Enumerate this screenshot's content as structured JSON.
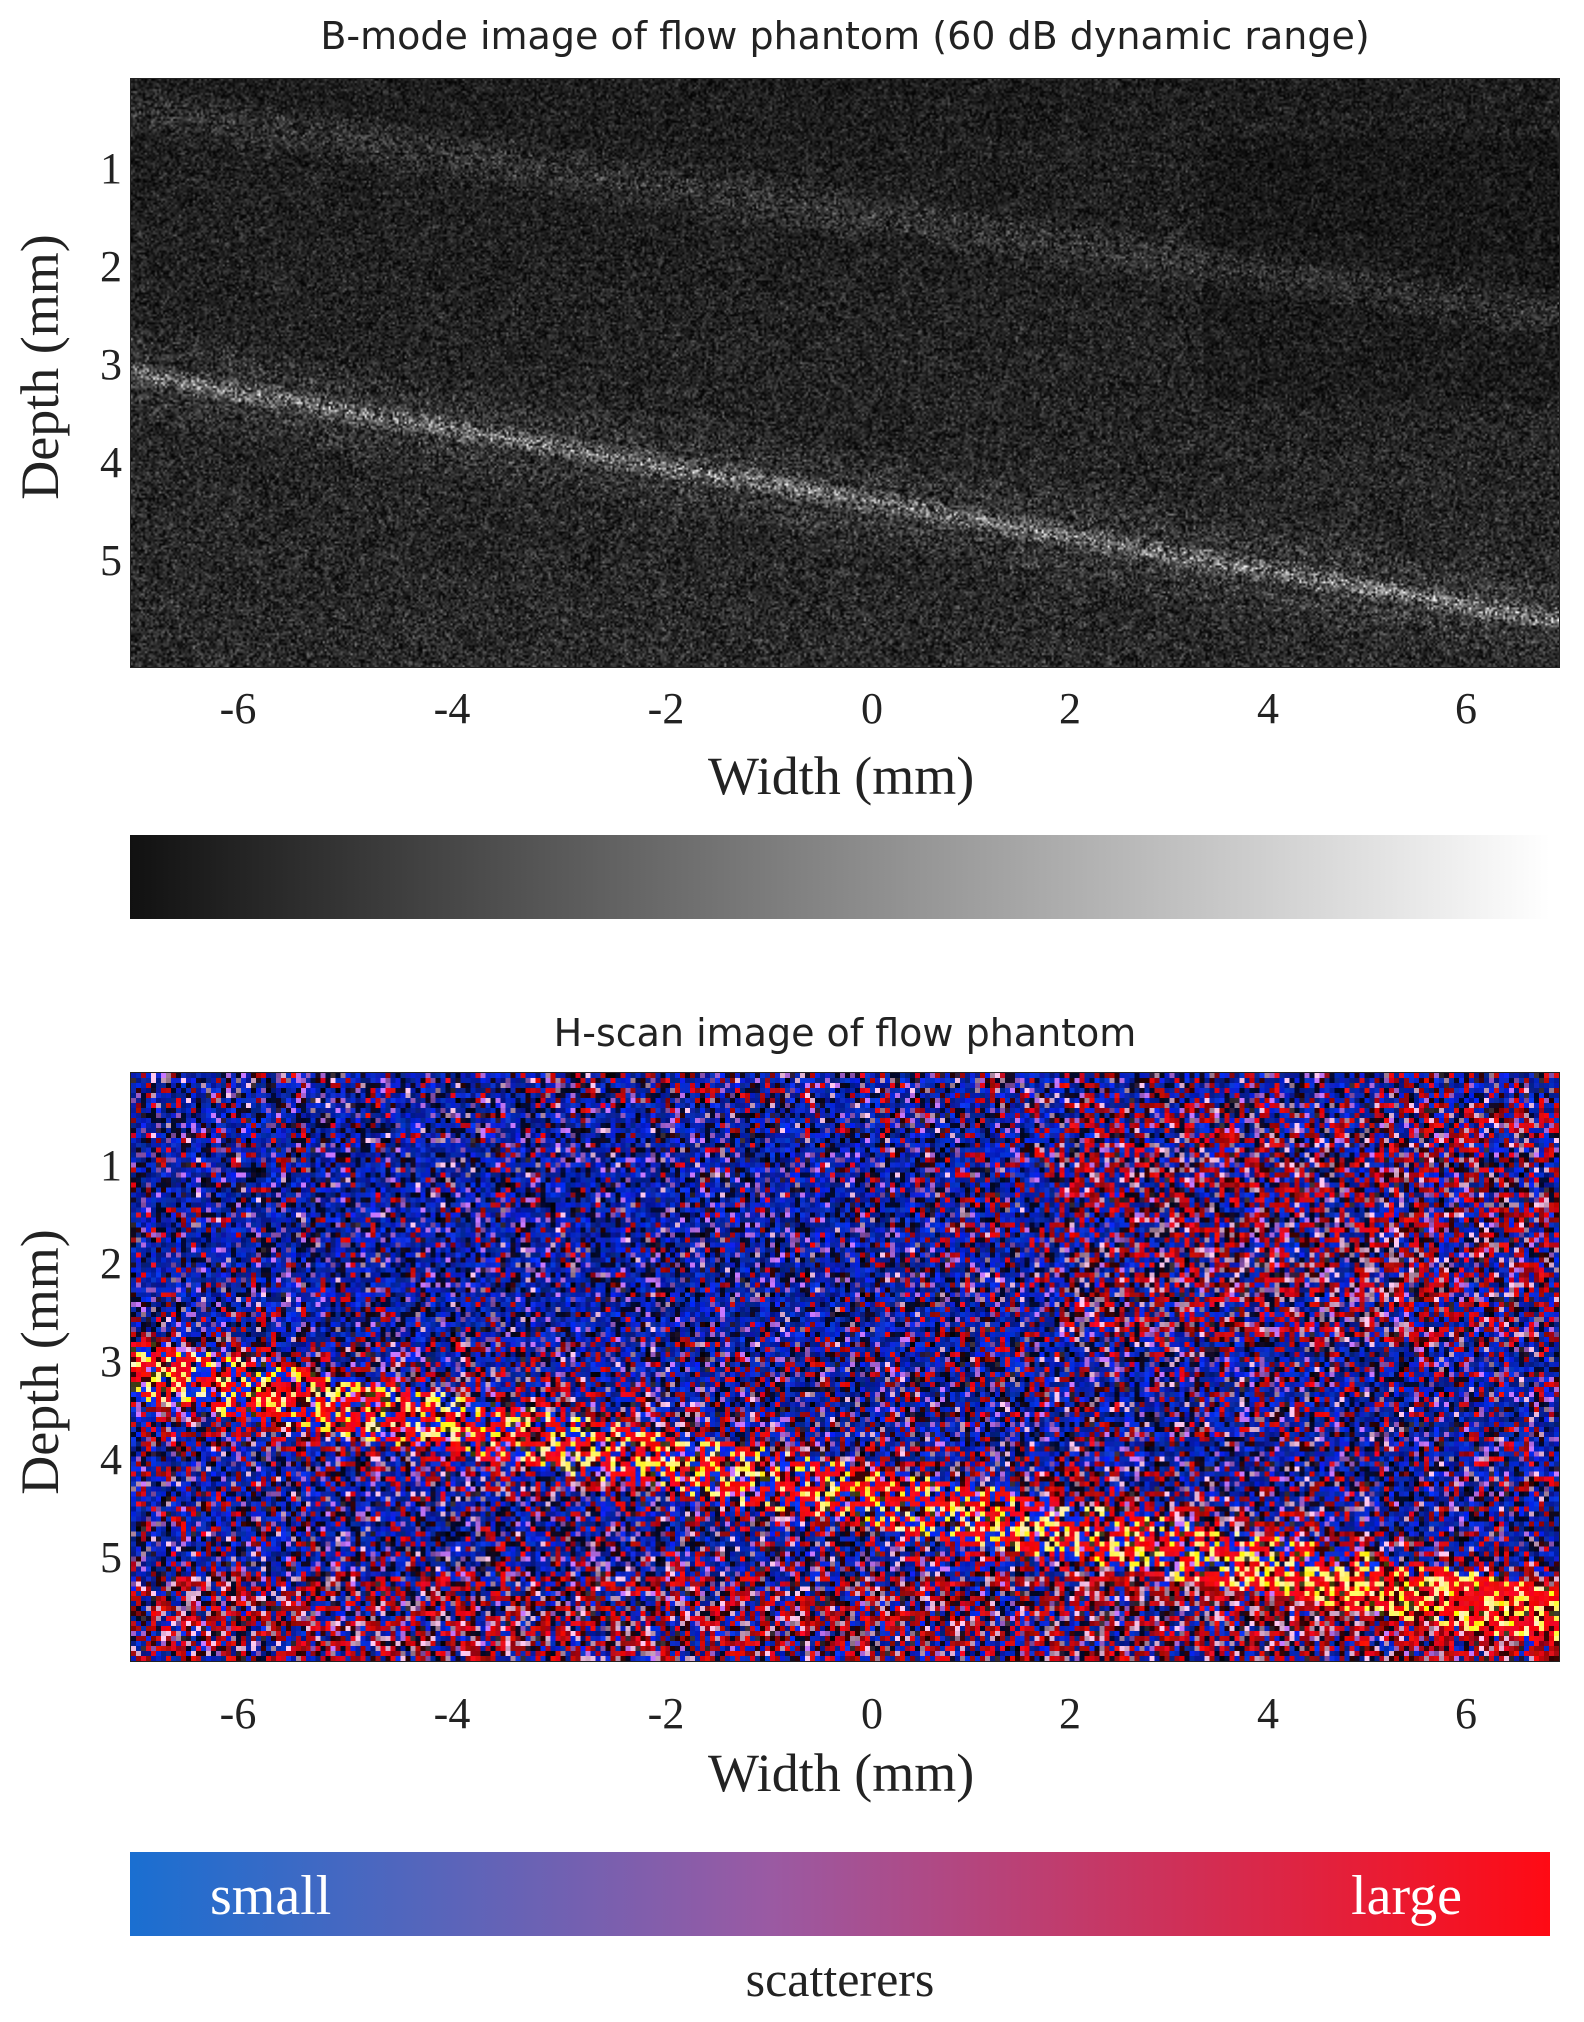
{
  "figure": {
    "top_panel": {
      "title": "B-mode image of flow phantom (60 dB dynamic range)",
      "xlabel": "Width (mm)",
      "ylabel": "Depth (mm)",
      "xticks": [
        "-6",
        "-4",
        "-2",
        "0",
        "2",
        "4",
        "6"
      ],
      "yticks": [
        "1",
        "2",
        "3",
        "4",
        "5"
      ],
      "colormap": "gray"
    },
    "bottom_panel": {
      "title": "H-scan image of flow phantom",
      "xlabel": "Width (mm)",
      "ylabel": "Depth (mm)",
      "xticks": [
        "-6",
        "-4",
        "-2",
        "0",
        "2",
        "4",
        "6"
      ],
      "yticks": [
        "1",
        "2",
        "3",
        "4",
        "5"
      ],
      "colormap": "blue-red"
    },
    "colorbar_bottom": {
      "left_label": "small",
      "right_label": "large",
      "caption": "scatterers",
      "start_color": "#1a6fd1",
      "mid_color": "#9a5aa3",
      "end_color": "#ff0a14"
    },
    "colorbar_top": {
      "start_color": "#111111",
      "end_color": "#ffffff"
    },
    "x_range": [
      -7,
      7
    ],
    "y_range": [
      0.1,
      6.1
    ]
  }
}
